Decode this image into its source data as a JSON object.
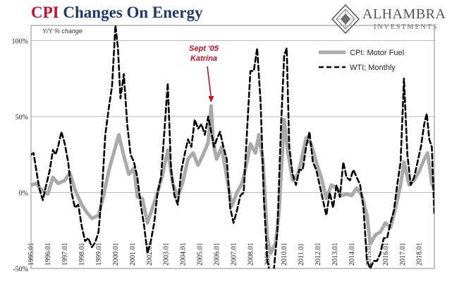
{
  "header": {
    "title_cpi": "CPI",
    "title_rest": "Changes On Energy"
  },
  "logo": {
    "name": "ALHAMBRA",
    "tagline": "INVESTMENTS",
    "icon": "alhambra-diamond-logo"
  },
  "colors": {
    "title_blue": "#1f3a6b",
    "title_red": "#c8102e",
    "motor_fuel": "#aaaaaa",
    "wti": "#000000",
    "annotation": "#c0101e"
  },
  "chart_data": {
    "type": "line",
    "ylabel": "Y/Y % change",
    "ylim": [
      -50,
      110
    ],
    "yticks": [
      {
        "v": 100,
        "label": "100%"
      },
      {
        "v": 50,
        "label": "50%"
      },
      {
        "v": 0,
        "label": "0%"
      },
      {
        "v": -50,
        "label": "-50%"
      }
    ],
    "xlim": [
      1995.0,
      2018.9
    ],
    "xticks": [
      "1995.01",
      "1996.01",
      "1997.01",
      "1998.01",
      "1999.01",
      "2000.01",
      "2001.01",
      "2002.01",
      "2003.01",
      "2004.01",
      "2005.01",
      "2006.01",
      "2007.01",
      "2008.01",
      "2009.01",
      "2010.01",
      "2011.01",
      "2012.01",
      "2013.01",
      "2014.01",
      "2015.01",
      "2016.01",
      "2017.01",
      "2018.01"
    ],
    "legend": {
      "placement": "top-right"
    },
    "annotation": {
      "line1": "Sept '05",
      "line2": "Katrina",
      "x": 2005.67,
      "y": 57
    },
    "series": [
      {
        "name": "CPI: Motor Fuel",
        "style": "solid",
        "points": [
          [
            1995.0,
            5
          ],
          [
            1995.3,
            6
          ],
          [
            1995.6,
            2
          ],
          [
            1996.0,
            -1
          ],
          [
            1996.3,
            10
          ],
          [
            1996.6,
            6
          ],
          [
            1997.0,
            8
          ],
          [
            1997.3,
            13
          ],
          [
            1997.6,
            2
          ],
          [
            1998.0,
            -8
          ],
          [
            1998.3,
            -13
          ],
          [
            1998.6,
            -17
          ],
          [
            1999.0,
            -15
          ],
          [
            1999.3,
            -2
          ],
          [
            1999.6,
            14
          ],
          [
            2000.0,
            30
          ],
          [
            2000.2,
            38
          ],
          [
            2000.5,
            24
          ],
          [
            2000.8,
            12
          ],
          [
            2001.1,
            16
          ],
          [
            2001.3,
            -3
          ],
          [
            2001.6,
            -4
          ],
          [
            2001.9,
            -20
          ],
          [
            2002.2,
            -10
          ],
          [
            2002.5,
            0
          ],
          [
            2002.8,
            12
          ],
          [
            2003.1,
            28
          ],
          [
            2003.4,
            6
          ],
          [
            2003.7,
            -3
          ],
          [
            2004.0,
            7
          ],
          [
            2004.3,
            22
          ],
          [
            2004.6,
            26
          ],
          [
            2004.9,
            18
          ],
          [
            2005.2,
            25
          ],
          [
            2005.5,
            33
          ],
          [
            2005.67,
            57
          ],
          [
            2005.8,
            32
          ],
          [
            2006.0,
            22
          ],
          [
            2006.3,
            30
          ],
          [
            2006.6,
            10
          ],
          [
            2006.9,
            -9
          ],
          [
            2007.2,
            0
          ],
          [
            2007.5,
            6
          ],
          [
            2007.8,
            20
          ],
          [
            2008.0,
            32
          ],
          [
            2008.3,
            26
          ],
          [
            2008.5,
            38
          ],
          [
            2008.75,
            20
          ],
          [
            2009.0,
            -30
          ],
          [
            2009.2,
            -40
          ],
          [
            2009.5,
            -33
          ],
          [
            2009.7,
            -12
          ],
          [
            2010.0,
            48
          ],
          [
            2010.2,
            28
          ],
          [
            2010.5,
            8
          ],
          [
            2010.8,
            12
          ],
          [
            2011.0,
            20
          ],
          [
            2011.3,
            36
          ],
          [
            2011.6,
            32
          ],
          [
            2011.9,
            20
          ],
          [
            2012.2,
            10
          ],
          [
            2012.5,
            -4
          ],
          [
            2012.8,
            5
          ],
          [
            2013.1,
            3
          ],
          [
            2013.4,
            -2
          ],
          [
            2013.7,
            -1
          ],
          [
            2014.0,
            -2
          ],
          [
            2014.3,
            3
          ],
          [
            2014.6,
            -2
          ],
          [
            2014.9,
            -15
          ],
          [
            2015.1,
            -34
          ],
          [
            2015.4,
            -28
          ],
          [
            2015.7,
            -26
          ],
          [
            2016.0,
            -20
          ],
          [
            2016.3,
            -23
          ],
          [
            2016.6,
            -10
          ],
          [
            2016.9,
            5
          ],
          [
            2017.1,
            20
          ],
          [
            2017.4,
            5
          ],
          [
            2017.7,
            8
          ],
          [
            2018.0,
            14
          ],
          [
            2018.3,
            22
          ],
          [
            2018.5,
            26
          ],
          [
            2018.75,
            6
          ],
          [
            2018.9,
            2
          ]
        ]
      },
      {
        "name": "WTI; Monthly",
        "style": "dashed",
        "points": [
          [
            1995.0,
            25
          ],
          [
            1995.15,
            26
          ],
          [
            1995.35,
            12
          ],
          [
            1995.5,
            2
          ],
          [
            1995.7,
            -5
          ],
          [
            1995.9,
            5
          ],
          [
            1996.1,
            14
          ],
          [
            1996.3,
            28
          ],
          [
            1996.45,
            25
          ],
          [
            1996.6,
            30
          ],
          [
            1996.8,
            40
          ],
          [
            1997.0,
            32
          ],
          [
            1997.2,
            20
          ],
          [
            1997.4,
            0
          ],
          [
            1997.6,
            -10
          ],
          [
            1997.8,
            -8
          ],
          [
            1998.0,
            -22
          ],
          [
            1998.2,
            -32
          ],
          [
            1998.4,
            -30
          ],
          [
            1998.6,
            -36
          ],
          [
            1998.8,
            -33
          ],
          [
            1999.0,
            -26
          ],
          [
            1999.2,
            0
          ],
          [
            1999.4,
            38
          ],
          [
            1999.6,
            55
          ],
          [
            1999.8,
            70
          ],
          [
            2000.0,
            110
          ],
          [
            2000.15,
            95
          ],
          [
            2000.3,
            62
          ],
          [
            2000.5,
            78
          ],
          [
            2000.7,
            45
          ],
          [
            2000.9,
            25
          ],
          [
            2001.1,
            20
          ],
          [
            2001.3,
            10
          ],
          [
            2001.5,
            -8
          ],
          [
            2001.7,
            -22
          ],
          [
            2001.9,
            -40
          ],
          [
            2002.1,
            -32
          ],
          [
            2002.3,
            -20
          ],
          [
            2002.5,
            0
          ],
          [
            2002.7,
            10
          ],
          [
            2002.9,
            40
          ],
          [
            2003.1,
            72
          ],
          [
            2003.3,
            15
          ],
          [
            2003.5,
            -2
          ],
          [
            2003.7,
            -8
          ],
          [
            2003.9,
            14
          ],
          [
            2004.1,
            25
          ],
          [
            2004.3,
            35
          ],
          [
            2004.5,
            30
          ],
          [
            2004.7,
            48
          ],
          [
            2004.9,
            42
          ],
          [
            2005.1,
            45
          ],
          [
            2005.3,
            38
          ],
          [
            2005.5,
            50
          ],
          [
            2005.67,
            40
          ],
          [
            2005.85,
            30
          ],
          [
            2006.0,
            35
          ],
          [
            2006.2,
            40
          ],
          [
            2006.4,
            30
          ],
          [
            2006.6,
            22
          ],
          [
            2006.8,
            -10
          ],
          [
            2007.0,
            -20
          ],
          [
            2007.2,
            -12
          ],
          [
            2007.4,
            -2
          ],
          [
            2007.6,
            0
          ],
          [
            2007.8,
            40
          ],
          [
            2008.0,
            80
          ],
          [
            2008.2,
            80
          ],
          [
            2008.4,
            95
          ],
          [
            2008.6,
            60
          ],
          [
            2008.8,
            -5
          ],
          [
            2009.0,
            -45
          ],
          [
            2009.2,
            -55
          ],
          [
            2009.4,
            -50
          ],
          [
            2009.6,
            -25
          ],
          [
            2009.8,
            40
          ],
          [
            2010.0,
            90
          ],
          [
            2010.15,
            95
          ],
          [
            2010.3,
            30
          ],
          [
            2010.5,
            12
          ],
          [
            2010.7,
            5
          ],
          [
            2010.9,
            15
          ],
          [
            2011.1,
            15
          ],
          [
            2011.3,
            30
          ],
          [
            2011.5,
            40
          ],
          [
            2011.7,
            20
          ],
          [
            2011.9,
            15
          ],
          [
            2012.1,
            5
          ],
          [
            2012.3,
            -5
          ],
          [
            2012.5,
            -15
          ],
          [
            2012.7,
            0
          ],
          [
            2012.9,
            -10
          ],
          [
            2013.1,
            5
          ],
          [
            2013.3,
            -3
          ],
          [
            2013.5,
            20
          ],
          [
            2013.7,
            10
          ],
          [
            2013.9,
            8
          ],
          [
            2014.1,
            15
          ],
          [
            2014.3,
            10
          ],
          [
            2014.5,
            5
          ],
          [
            2014.7,
            -10
          ],
          [
            2014.9,
            -45
          ],
          [
            2015.1,
            -50
          ],
          [
            2015.3,
            -45
          ],
          [
            2015.5,
            -45
          ],
          [
            2015.7,
            -40
          ],
          [
            2015.9,
            -30
          ],
          [
            2016.1,
            -30
          ],
          [
            2016.3,
            -20
          ],
          [
            2016.5,
            -12
          ],
          [
            2016.7,
            5
          ],
          [
            2016.9,
            20
          ],
          [
            2017.1,
            75
          ],
          [
            2017.3,
            25
          ],
          [
            2017.5,
            5
          ],
          [
            2017.7,
            10
          ],
          [
            2017.9,
            20
          ],
          [
            2018.1,
            30
          ],
          [
            2018.3,
            45
          ],
          [
            2018.45,
            52
          ],
          [
            2018.6,
            35
          ],
          [
            2018.75,
            30
          ],
          [
            2018.9,
            -15
          ]
        ]
      }
    ]
  }
}
